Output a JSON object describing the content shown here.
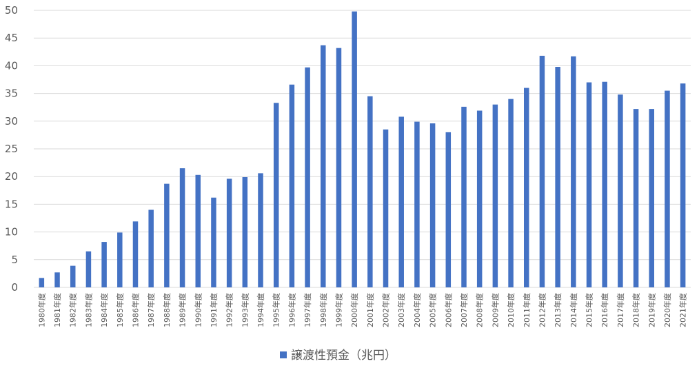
{
  "chart_data": {
    "type": "bar",
    "categories": [
      "1980年度",
      "1981年度",
      "1982年度",
      "1983年度",
      "1984年度",
      "1985年度",
      "1986年度",
      "1987年度",
      "1988年度",
      "1989年度",
      "1990年度",
      "1991年度",
      "1992年度",
      "1993年度",
      "1994年度",
      "1995年度",
      "1996年度",
      "1997年度",
      "1998年度",
      "1999年度",
      "2000年度",
      "2001年度",
      "2002年度",
      "2003年度",
      "2004年度",
      "2005年度",
      "2006年度",
      "2007年度",
      "2008年度",
      "2009年度",
      "2010年度",
      "2011年度",
      "2012年度",
      "2013年度",
      "2014年度",
      "2015年度",
      "2016年度",
      "2017年度",
      "2018年度",
      "2019年度",
      "2020年度",
      "2021年度"
    ],
    "series": [
      {
        "name": "譲渡性預金（兆円）",
        "values": [
          1.7,
          2.7,
          3.9,
          6.5,
          8.2,
          9.9,
          11.9,
          14.0,
          18.7,
          21.5,
          20.3,
          16.2,
          19.6,
          19.9,
          20.6,
          33.3,
          36.6,
          39.7,
          43.7,
          43.2,
          49.8,
          34.5,
          28.5,
          30.8,
          29.9,
          29.6,
          28.0,
          32.6,
          31.9,
          33.0,
          34.0,
          36.0,
          41.8,
          39.8,
          41.7,
          37.0,
          37.1,
          34.8,
          32.2,
          32.2,
          35.5,
          36.8
        ]
      }
    ],
    "ylim": [
      0,
      50
    ],
    "yticks": [
      "0",
      "5",
      "10",
      "15",
      "20",
      "25",
      "30",
      "35",
      "40",
      "45",
      "50"
    ],
    "grid": true,
    "legend_position": "bottom",
    "colors": {
      "bar": "#4472C4",
      "grid": "#D9D9D9",
      "text": "#595959"
    }
  }
}
